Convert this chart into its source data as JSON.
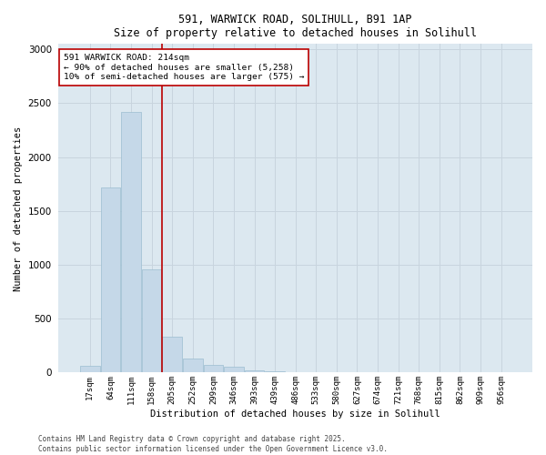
{
  "title_line1": "591, WARWICK ROAD, SOLIHULL, B91 1AP",
  "title_line2": "Size of property relative to detached houses in Solihull",
  "xlabel": "Distribution of detached houses by size in Solihull",
  "ylabel": "Number of detached properties",
  "footnote1": "Contains HM Land Registry data © Crown copyright and database right 2025.",
  "footnote2": "Contains public sector information licensed under the Open Government Licence v3.0.",
  "annotation_line1": "591 WARWICK ROAD: 214sqm",
  "annotation_line2": "← 90% of detached houses are smaller (5,258)",
  "annotation_line3": "10% of semi-detached houses are larger (575) →",
  "bar_color": "#c5d8e8",
  "bar_edge_color": "#9bbdd0",
  "grid_color": "#c8d4de",
  "bg_color": "#dce8f0",
  "red_line_color": "#bb0000",
  "categories": [
    "17sqm",
    "64sqm",
    "111sqm",
    "158sqm",
    "205sqm",
    "252sqm",
    "299sqm",
    "346sqm",
    "393sqm",
    "439sqm",
    "486sqm",
    "533sqm",
    "580sqm",
    "627sqm",
    "674sqm",
    "721sqm",
    "768sqm",
    "815sqm",
    "862sqm",
    "909sqm",
    "956sqm"
  ],
  "values": [
    60,
    1720,
    2420,
    960,
    330,
    130,
    75,
    50,
    20,
    10,
    0,
    0,
    0,
    0,
    0,
    0,
    0,
    0,
    0,
    0,
    0
  ],
  "ylim": [
    0,
    3050
  ],
  "yticks": [
    0,
    500,
    1000,
    1500,
    2000,
    2500,
    3000
  ],
  "red_line_x": 3.5
}
